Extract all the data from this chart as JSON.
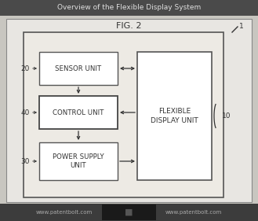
{
  "title": "Overview of the Flexible Display System",
  "fig_label": "FIG. 2",
  "bg_outer": "#c8c6c0",
  "bg_diagram": "#f0eeea",
  "bg_white": "#ffffff",
  "border_dark": "#555555",
  "border_med": "#777777",
  "text_dark": "#333333",
  "title_bg": "#4a4a4a",
  "title_text": "#e0e0e0",
  "footer_bg": "#3c3c3c",
  "footer_text": "#aaaaaa",
  "footer_center_bg": "#1a1a1a",
  "footer_left": "www.patentbolt.com",
  "footer_right": "www.patentbolt.com",
  "label_20": "20",
  "label_40": "40",
  "label_30": "30",
  "label_10": "10",
  "label_1": "1",
  "sensor_text": "SENSOR UNIT",
  "control_text": "CONTROL UNIT",
  "power_text": "POWER SUPPLY\nUNIT",
  "flexible_text": "FLEXIBLE\nDISPLAY UNIT"
}
